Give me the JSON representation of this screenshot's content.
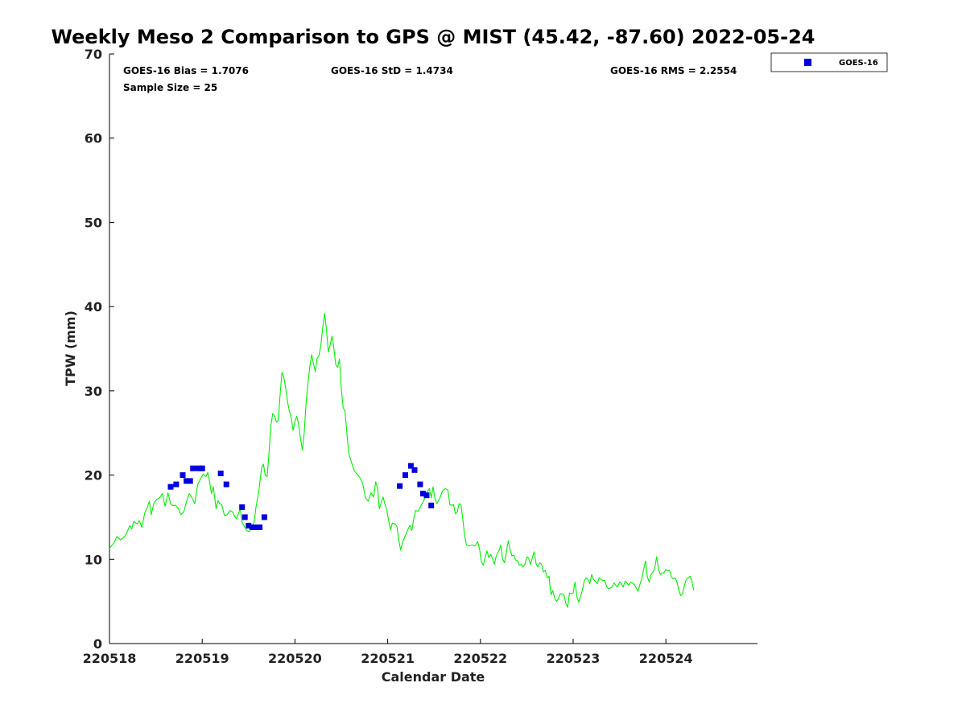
{
  "chart_data": {
    "type": "line",
    "title": "Weekly Meso 2 Comparison to GPS @ MIST (45.42, -87.60) 2022-05-24",
    "xlabel": "Calendar Date",
    "ylabel": "TPW (mm)",
    "xlim": [
      0,
      7
    ],
    "ylim": [
      0,
      70
    ],
    "x_ticks": [
      {
        "value": 0,
        "label": "220518"
      },
      {
        "value": 1,
        "label": "220519"
      },
      {
        "value": 2,
        "label": "220520"
      },
      {
        "value": 3,
        "label": "220521"
      },
      {
        "value": 4,
        "label": "220522"
      },
      {
        "value": 5,
        "label": "220523"
      },
      {
        "value": 6,
        "label": "220524"
      }
    ],
    "y_ticks": [
      0,
      10,
      20,
      30,
      40,
      50,
      60,
      70
    ],
    "grid": false,
    "legend_position": "top-right-outside",
    "stats": {
      "bias": "GOES-16 Bias = 1.7076",
      "std": "GOES-16 StD = 1.4734",
      "rms": "GOES-16 RMS = 2.2554",
      "sample": "Sample Size = 25"
    },
    "series": [
      {
        "kind": "line",
        "color": "#00ee00",
        "points": [
          [
            0.0,
            11.3
          ],
          [
            0.05,
            12.0
          ],
          [
            0.08,
            12.7
          ],
          [
            0.12,
            12.3
          ],
          [
            0.17,
            12.8
          ],
          [
            0.2,
            13.5
          ],
          [
            0.22,
            14.0
          ],
          [
            0.24,
            13.6
          ],
          [
            0.26,
            14.5
          ],
          [
            0.3,
            14.2
          ],
          [
            0.32,
            14.6
          ],
          [
            0.35,
            13.8
          ],
          [
            0.38,
            15.5
          ],
          [
            0.41,
            16.2
          ],
          [
            0.43,
            16.9
          ],
          [
            0.45,
            15.3
          ],
          [
            0.48,
            16.7
          ],
          [
            0.51,
            17.1
          ],
          [
            0.54,
            17.3
          ],
          [
            0.57,
            17.8
          ],
          [
            0.6,
            16.3
          ],
          [
            0.63,
            17.9
          ],
          [
            0.66,
            16.6
          ],
          [
            0.68,
            16.4
          ],
          [
            0.71,
            16.4
          ],
          [
            0.74,
            16.1
          ],
          [
            0.77,
            15.3
          ],
          [
            0.8,
            15.6
          ],
          [
            0.83,
            16.8
          ],
          [
            0.86,
            17.8
          ],
          [
            0.89,
            17.3
          ],
          [
            0.92,
            16.6
          ],
          [
            0.95,
            18.8
          ],
          [
            0.98,
            19.5
          ],
          [
            1.01,
            20.1
          ],
          [
            1.04,
            19.8
          ],
          [
            1.06,
            20.3
          ],
          [
            1.08,
            19.2
          ],
          [
            1.1,
            17.8
          ],
          [
            1.12,
            18.6
          ],
          [
            1.15,
            16.0
          ],
          [
            1.17,
            17.0
          ],
          [
            1.19,
            16.6
          ],
          [
            1.21,
            16.5
          ],
          [
            1.24,
            15.2
          ],
          [
            1.27,
            15.3
          ],
          [
            1.3,
            15.8
          ],
          [
            1.33,
            15.6
          ],
          [
            1.35,
            15.1
          ],
          [
            1.37,
            14.8
          ],
          [
            1.39,
            15.4
          ],
          [
            1.41,
            16.0
          ],
          [
            1.43,
            14.4
          ],
          [
            1.46,
            13.8
          ],
          [
            1.48,
            13.4
          ],
          [
            1.51,
            13.3
          ],
          [
            1.53,
            13.8
          ],
          [
            1.56,
            14.4
          ],
          [
            1.58,
            16.2
          ],
          [
            1.61,
            18.1
          ],
          [
            1.64,
            20.8
          ],
          [
            1.66,
            21.3
          ],
          [
            1.68,
            20.0
          ],
          [
            1.7,
            19.8
          ],
          [
            1.72,
            22.5
          ],
          [
            1.74,
            25.8
          ],
          [
            1.76,
            27.3
          ],
          [
            1.78,
            27.0
          ],
          [
            1.8,
            26.3
          ],
          [
            1.82,
            26.5
          ],
          [
            1.84,
            29.6
          ],
          [
            1.86,
            32.2
          ],
          [
            1.88,
            31.6
          ],
          [
            1.9,
            30.3
          ],
          [
            1.92,
            28.7
          ],
          [
            1.94,
            27.6
          ],
          [
            1.96,
            26.8
          ],
          [
            1.98,
            25.3
          ],
          [
            2.0,
            26.4
          ],
          [
            2.02,
            27.0
          ],
          [
            2.04,
            26.0
          ],
          [
            2.06,
            24.3
          ],
          [
            2.08,
            23.0
          ],
          [
            2.1,
            25.0
          ],
          [
            2.12,
            28.5
          ],
          [
            2.14,
            30.9
          ],
          [
            2.16,
            32.8
          ],
          [
            2.18,
            34.3
          ],
          [
            2.2,
            33.2
          ],
          [
            2.22,
            32.3
          ],
          [
            2.24,
            33.9
          ],
          [
            2.26,
            34.2
          ],
          [
            2.28,
            35.5
          ],
          [
            2.3,
            37.6
          ],
          [
            2.32,
            39.2
          ],
          [
            2.34,
            37.2
          ],
          [
            2.36,
            34.6
          ],
          [
            2.38,
            35.5
          ],
          [
            2.4,
            36.5
          ],
          [
            2.42,
            35.0
          ],
          [
            2.44,
            33.1
          ],
          [
            2.46,
            32.8
          ],
          [
            2.48,
            33.8
          ],
          [
            2.5,
            30.2
          ],
          [
            2.52,
            28.0
          ],
          [
            2.54,
            27.6
          ],
          [
            2.56,
            25.0
          ],
          [
            2.58,
            22.6
          ],
          [
            2.61,
            21.5
          ],
          [
            2.64,
            20.5
          ],
          [
            2.67,
            20.1
          ],
          [
            2.7,
            19.7
          ],
          [
            2.73,
            19.0
          ],
          [
            2.76,
            17.3
          ],
          [
            2.79,
            16.9
          ],
          [
            2.82,
            17.9
          ],
          [
            2.85,
            17.4
          ],
          [
            2.87,
            19.2
          ],
          [
            2.89,
            18.5
          ],
          [
            2.91,
            16.0
          ],
          [
            2.93,
            16.7
          ],
          [
            2.95,
            17.4
          ],
          [
            2.97,
            16.6
          ],
          [
            2.99,
            15.9
          ],
          [
            3.01,
            14.6
          ],
          [
            3.03,
            13.5
          ],
          [
            3.05,
            14.3
          ],
          [
            3.08,
            14.2
          ],
          [
            3.1,
            13.9
          ],
          [
            3.12,
            12.3
          ],
          [
            3.14,
            11.1
          ],
          [
            3.16,
            12.0
          ],
          [
            3.19,
            12.8
          ],
          [
            3.22,
            13.6
          ],
          [
            3.24,
            14.0
          ],
          [
            3.26,
            13.4
          ],
          [
            3.28,
            14.8
          ],
          [
            3.3,
            15.8
          ],
          [
            3.33,
            15.7
          ],
          [
            3.36,
            16.4
          ],
          [
            3.39,
            17.0
          ],
          [
            3.42,
            17.9
          ],
          [
            3.45,
            18.4
          ],
          [
            3.47,
            17.3
          ],
          [
            3.49,
            18.6
          ],
          [
            3.51,
            17.2
          ],
          [
            3.53,
            16.6
          ],
          [
            3.56,
            17.2
          ],
          [
            3.59,
            18.1
          ],
          [
            3.62,
            18.4
          ],
          [
            3.65,
            18.2
          ],
          [
            3.67,
            16.5
          ],
          [
            3.69,
            16.4
          ],
          [
            3.71,
            16.5
          ],
          [
            3.73,
            15.4
          ],
          [
            3.75,
            15.6
          ],
          [
            3.77,
            16.6
          ],
          [
            3.79,
            16.5
          ],
          [
            3.81,
            14.8
          ],
          [
            3.83,
            12.8
          ],
          [
            3.85,
            11.7
          ],
          [
            3.88,
            11.6
          ],
          [
            3.91,
            11.7
          ],
          [
            3.94,
            11.6
          ],
          [
            3.97,
            12.1
          ],
          [
            3.99,
            11.3
          ],
          [
            4.01,
            9.7
          ],
          [
            4.03,
            9.3
          ],
          [
            4.05,
            10.2
          ],
          [
            4.07,
            11.0
          ],
          [
            4.09,
            10.2
          ],
          [
            4.11,
            10.6
          ],
          [
            4.13,
            10.1
          ],
          [
            4.15,
            9.4
          ],
          [
            4.17,
            10.4
          ],
          [
            4.2,
            11.0
          ],
          [
            4.22,
            11.7
          ],
          [
            4.24,
            10.0
          ],
          [
            4.26,
            9.6
          ],
          [
            4.28,
            10.9
          ],
          [
            4.3,
            12.2
          ],
          [
            4.32,
            11.1
          ],
          [
            4.34,
            10.4
          ],
          [
            4.36,
            10.5
          ],
          [
            4.38,
            9.9
          ],
          [
            4.4,
            9.8
          ],
          [
            4.42,
            9.3
          ],
          [
            4.44,
            9.4
          ],
          [
            4.46,
            9.1
          ],
          [
            4.48,
            9.4
          ],
          [
            4.5,
            10.3
          ],
          [
            4.52,
            10.1
          ],
          [
            4.54,
            9.4
          ],
          [
            4.56,
            10.2
          ],
          [
            4.58,
            10.9
          ],
          [
            4.6,
            9.5
          ],
          [
            4.62,
            9.1
          ],
          [
            4.64,
            9.6
          ],
          [
            4.66,
            9.4
          ],
          [
            4.68,
            8.5
          ],
          [
            4.7,
            8.7
          ],
          [
            4.72,
            7.8
          ],
          [
            4.74,
            8.0
          ],
          [
            4.76,
            5.8
          ],
          [
            4.78,
            6.3
          ],
          [
            4.8,
            5.4
          ],
          [
            4.82,
            5.0
          ],
          [
            4.84,
            5.3
          ],
          [
            4.86,
            5.9
          ],
          [
            4.88,
            5.9
          ],
          [
            4.9,
            5.8
          ],
          [
            4.92,
            4.8
          ],
          [
            4.94,
            4.3
          ],
          [
            4.96,
            6.0
          ],
          [
            4.98,
            5.9
          ],
          [
            5.0,
            6.0
          ],
          [
            5.02,
            7.3
          ],
          [
            5.04,
            5.6
          ],
          [
            5.06,
            4.9
          ],
          [
            5.08,
            5.6
          ],
          [
            5.1,
            6.4
          ],
          [
            5.12,
            7.4
          ],
          [
            5.14,
            7.8
          ],
          [
            5.16,
            7.6
          ],
          [
            5.18,
            7.1
          ],
          [
            5.2,
            8.2
          ],
          [
            5.22,
            7.6
          ],
          [
            5.24,
            7.4
          ],
          [
            5.26,
            7.1
          ],
          [
            5.28,
            7.8
          ],
          [
            5.3,
            7.6
          ],
          [
            5.32,
            7.5
          ],
          [
            5.34,
            7.5
          ],
          [
            5.36,
            6.8
          ],
          [
            5.38,
            6.5
          ],
          [
            5.4,
            6.6
          ],
          [
            5.42,
            6.7
          ],
          [
            5.44,
            7.2
          ],
          [
            5.46,
            6.9
          ],
          [
            5.48,
            6.7
          ],
          [
            5.5,
            7.3
          ],
          [
            5.52,
            7.1
          ],
          [
            5.54,
            6.7
          ],
          [
            5.56,
            7.4
          ],
          [
            5.58,
            7.2
          ],
          [
            5.6,
            6.9
          ],
          [
            5.62,
            7.3
          ],
          [
            5.64,
            7.2
          ],
          [
            5.66,
            7.0
          ],
          [
            5.68,
            6.6
          ],
          [
            5.7,
            6.2
          ],
          [
            5.72,
            7.0
          ],
          [
            5.74,
            7.7
          ],
          [
            5.76,
            8.8
          ],
          [
            5.78,
            9.8
          ],
          [
            5.8,
            7.9
          ],
          [
            5.82,
            7.3
          ],
          [
            5.84,
            8.2
          ],
          [
            5.86,
            8.5
          ],
          [
            5.88,
            9.0
          ],
          [
            5.9,
            10.3
          ],
          [
            5.92,
            8.8
          ],
          [
            5.94,
            8.2
          ],
          [
            5.96,
            8.4
          ],
          [
            5.98,
            8.4
          ],
          [
            6.0,
            8.8
          ],
          [
            6.02,
            8.6
          ],
          [
            6.04,
            8.7
          ],
          [
            6.06,
            7.9
          ],
          [
            6.08,
            7.7
          ],
          [
            6.1,
            7.8
          ],
          [
            6.12,
            7.3
          ],
          [
            6.14,
            6.3
          ],
          [
            6.16,
            5.7
          ],
          [
            6.18,
            5.9
          ],
          [
            6.2,
            6.9
          ],
          [
            6.22,
            7.6
          ],
          [
            6.24,
            7.8
          ],
          [
            6.26,
            8.0
          ],
          [
            6.28,
            7.4
          ],
          [
            6.3,
            6.3
          ]
        ]
      },
      {
        "kind": "scatter",
        "name": "GOES-16",
        "color": "#0000dd",
        "points": [
          [
            0.66,
            18.6
          ],
          [
            0.72,
            18.9
          ],
          [
            0.79,
            20.0
          ],
          [
            0.83,
            19.3
          ],
          [
            0.87,
            19.3
          ],
          [
            0.9,
            20.8
          ],
          [
            0.96,
            20.8
          ],
          [
            1.0,
            20.8
          ],
          [
            1.2,
            20.2
          ],
          [
            1.26,
            18.9
          ],
          [
            1.43,
            16.2
          ],
          [
            1.46,
            15.0
          ],
          [
            1.5,
            14.0
          ],
          [
            1.54,
            13.8
          ],
          [
            1.58,
            13.8
          ],
          [
            1.62,
            13.8
          ],
          [
            1.67,
            15.0
          ],
          [
            3.13,
            18.7
          ],
          [
            3.19,
            20.0
          ],
          [
            3.25,
            21.1
          ],
          [
            3.29,
            20.6
          ],
          [
            3.35,
            18.9
          ],
          [
            3.38,
            17.8
          ],
          [
            3.42,
            17.6
          ],
          [
            3.47,
            16.4
          ]
        ]
      }
    ]
  }
}
